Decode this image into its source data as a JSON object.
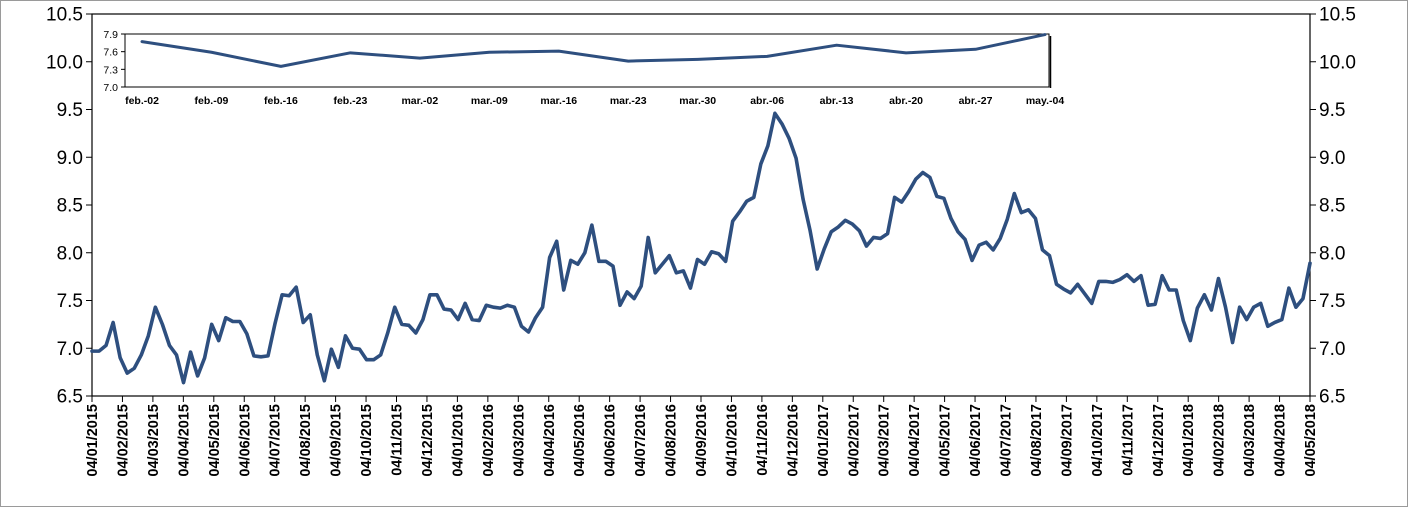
{
  "chart_data": [
    {
      "type": "line",
      "title": "",
      "xlabel": "",
      "ylabel": "",
      "ylim": [
        6.5,
        10.5
      ],
      "yticks": [
        "6.5",
        "7.0",
        "7.5",
        "8.0",
        "8.5",
        "9.0",
        "9.5",
        "10.0",
        "10.5"
      ],
      "y2ticks": [
        "6.5",
        "7.0",
        "7.5",
        "8.0",
        "8.5",
        "9.0",
        "9.5",
        "10.0",
        "10.5"
      ],
      "x_tick_labels": [
        "04/01/2015",
        "04/02/2015",
        "04/03/2015",
        "04/04/2015",
        "04/05/2015",
        "04/06/2015",
        "04/07/2015",
        "04/08/2015",
        "04/09/2015",
        "04/10/2015",
        "04/11/2015",
        "04/12/2015",
        "04/01/2016",
        "04/02/2016",
        "04/03/2016",
        "04/04/2016",
        "04/05/2016",
        "04/06/2016",
        "04/07/2016",
        "04/08/2016",
        "04/09/2016",
        "04/10/2016",
        "04/11/2016",
        "04/12/2016",
        "04/01/2017",
        "04/02/2017",
        "04/03/2017",
        "04/04/2017",
        "04/05/2017",
        "04/06/2017",
        "04/07/2017",
        "04/08/2017",
        "04/09/2017",
        "04/10/2017",
        "04/11/2017",
        "04/12/2017",
        "04/01/2018",
        "04/02/2018",
        "04/03/2018",
        "04/04/2018",
        "04/05/2018"
      ],
      "grid": false,
      "line_color": "#2e4f7f",
      "series": [
        {
          "values": [
            6.97,
            6.97,
            7.03,
            7.27,
            6.9,
            6.74,
            6.79,
            6.93,
            7.13,
            7.43,
            7.25,
            7.03,
            6.93,
            6.64,
            6.96,
            6.71,
            6.9,
            7.25,
            7.08,
            7.32,
            7.28,
            7.28,
            7.15,
            6.92,
            6.91,
            6.92,
            7.26,
            7.56,
            7.55,
            7.64,
            7.27,
            7.35,
            6.93,
            6.66,
            6.99,
            6.8,
            7.13,
            7.0,
            6.99,
            6.88,
            6.88,
            6.93,
            7.16,
            7.43,
            7.25,
            7.24,
            7.16,
            7.3,
            7.56,
            7.56,
            7.41,
            7.4,
            7.3,
            7.47,
            7.3,
            7.29,
            7.45,
            7.43,
            7.42,
            7.45,
            7.43,
            7.23,
            7.17,
            7.32,
            7.43,
            7.95,
            8.12,
            7.61,
            7.92,
            7.88,
            8.0,
            8.29,
            7.91,
            7.91,
            7.86,
            7.45,
            7.59,
            7.52,
            7.65,
            8.16,
            7.79,
            7.88,
            7.97,
            7.79,
            7.81,
            7.63,
            7.93,
            7.88,
            8.01,
            7.99,
            7.91,
            8.33,
            8.43,
            8.54,
            8.58,
            8.93,
            9.12,
            9.46,
            9.35,
            9.2,
            8.99,
            8.56,
            8.23,
            7.83,
            8.04,
            8.22,
            8.27,
            8.34,
            8.3,
            8.23,
            8.07,
            8.16,
            8.15,
            8.2,
            8.58,
            8.53,
            8.64,
            8.77,
            8.84,
            8.79,
            8.59,
            8.57,
            8.36,
            8.22,
            8.14,
            7.92,
            8.08,
            8.11,
            8.03,
            8.15,
            8.35,
            8.62,
            8.42,
            8.45,
            8.36,
            8.03,
            7.97,
            7.67,
            7.62,
            7.58,
            7.67,
            7.57,
            7.47,
            7.7,
            7.7,
            7.69,
            7.72,
            7.77,
            7.7,
            7.76,
            7.45,
            7.46,
            7.76,
            7.61,
            7.61,
            7.29,
            7.08,
            7.42,
            7.56,
            7.4,
            7.73,
            7.43,
            7.06,
            7.43,
            7.3,
            7.43,
            7.47,
            7.23,
            7.27,
            7.3,
            7.63,
            7.43,
            7.52,
            7.89
          ]
        }
      ]
    },
    {
      "type": "line",
      "title": "",
      "ylim": [
        7.0,
        7.9
      ],
      "yticks": [
        "7.0",
        "7.3",
        "7.6",
        "7.9"
      ],
      "categories": [
        "feb.-02",
        "feb.-09",
        "feb.-16",
        "feb.-23",
        "mar.-02",
        "mar.-09",
        "mar.-16",
        "mar.-23",
        "mar.-30",
        "abr.-06",
        "abr.-13",
        "abr.-20",
        "abr.-27",
        "may.-04"
      ],
      "series": [
        {
          "values": [
            7.77,
            7.59,
            7.35,
            7.58,
            7.49,
            7.59,
            7.61,
            7.44,
            7.47,
            7.52,
            7.71,
            7.58,
            7.64,
            7.89
          ]
        }
      ]
    }
  ]
}
